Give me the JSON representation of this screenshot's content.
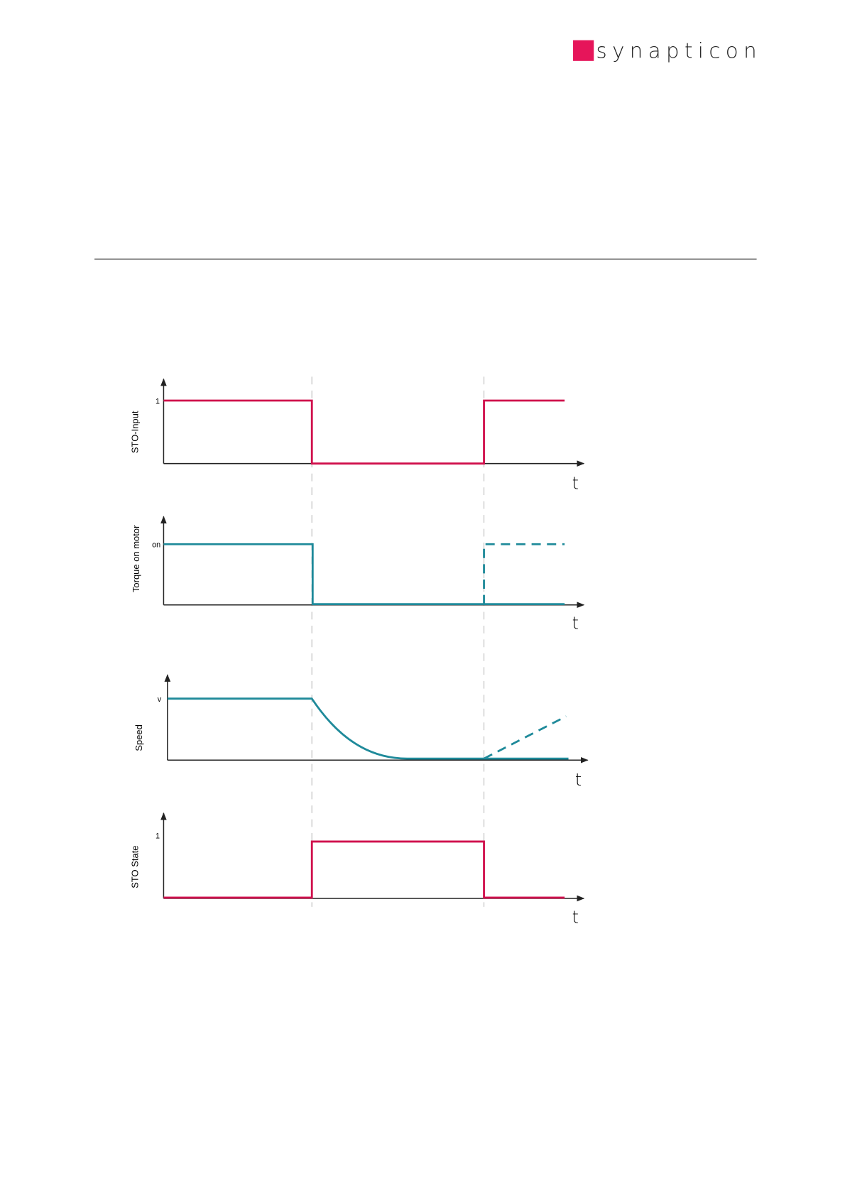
{
  "header": {
    "logo_text": "synapticon"
  },
  "diagram": {
    "panels": [
      {
        "y_label": "STO-Input",
        "level_label": "1",
        "x_label": "t"
      },
      {
        "y_label": "Torque on motor",
        "level_label": "on",
        "x_label": "t"
      },
      {
        "y_label": "Speed",
        "level_label": "v",
        "x_label": "t"
      },
      {
        "y_label": "STO State",
        "level_label": "1",
        "x_label": "t"
      }
    ]
  }
}
